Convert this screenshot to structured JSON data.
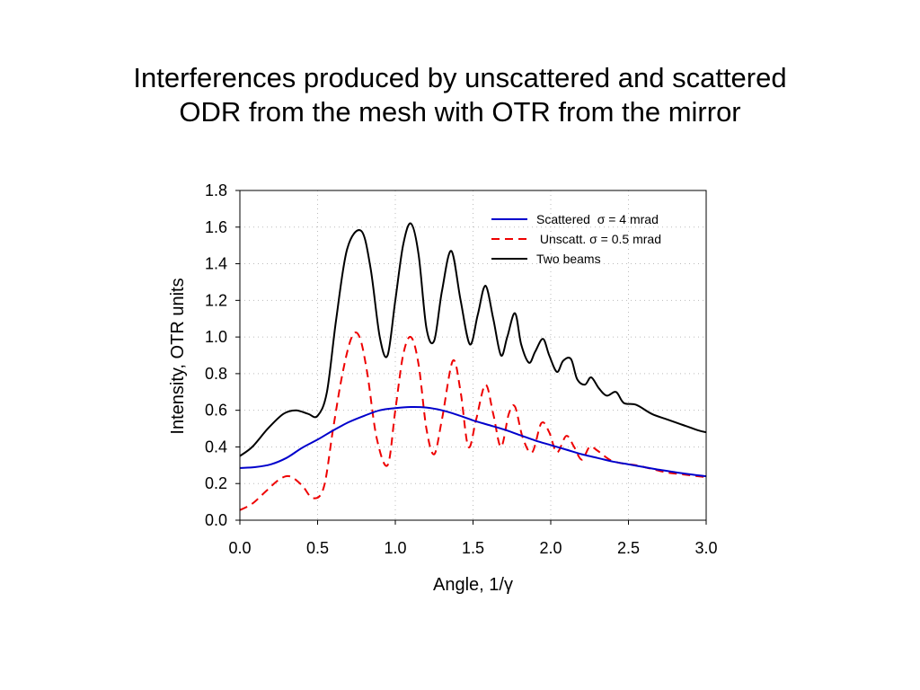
{
  "title": {
    "line1": "Interferences produced by unscattered and scattered",
    "line2": "ODR from the mesh with OTR from the mirror"
  },
  "chart_data": {
    "type": "line",
    "xlabel": "Angle, 1/γ",
    "ylabel": "Intensity, OTR units",
    "xlim": [
      0.0,
      3.0
    ],
    "ylim": [
      0.0,
      1.8
    ],
    "xticks": [
      "0.0",
      "0.5",
      "1.0",
      "1.5",
      "2.0",
      "2.5",
      "3.0"
    ],
    "yticks": [
      "0.0",
      "0.2",
      "0.4",
      "0.6",
      "0.8",
      "1.0",
      "1.2",
      "1.4",
      "1.6",
      "1.8"
    ],
    "grid": true,
    "legend_position": "top-right",
    "series": [
      {
        "name": "Scattered  σ = 4 mrad",
        "color": "#0000cc",
        "style": "solid",
        "x": [
          0.0,
          0.1,
          0.2,
          0.3,
          0.4,
          0.5,
          0.6,
          0.7,
          0.8,
          0.9,
          1.0,
          1.1,
          1.2,
          1.3,
          1.4,
          1.5,
          1.6,
          1.7,
          1.8,
          1.9,
          2.0,
          2.1,
          2.2,
          2.3,
          2.4,
          2.5,
          2.6,
          2.7,
          2.8,
          2.9,
          3.0
        ],
        "y": [
          0.285,
          0.29,
          0.305,
          0.34,
          0.395,
          0.44,
          0.49,
          0.535,
          0.57,
          0.6,
          0.612,
          0.618,
          0.615,
          0.6,
          0.575,
          0.545,
          0.52,
          0.495,
          0.465,
          0.435,
          0.41,
          0.385,
          0.36,
          0.34,
          0.32,
          0.305,
          0.29,
          0.275,
          0.262,
          0.25,
          0.24
        ]
      },
      {
        "name": " Unscatt. σ = 0.5 mrad",
        "color": "#ee0000",
        "style": "dashed",
        "x": [
          0.0,
          0.08,
          0.17,
          0.25,
          0.32,
          0.4,
          0.47,
          0.54,
          0.6,
          0.66,
          0.72,
          0.77,
          0.82,
          0.88,
          0.95,
          1.0,
          1.05,
          1.1,
          1.15,
          1.2,
          1.25,
          1.3,
          1.37,
          1.42,
          1.47,
          1.52,
          1.58,
          1.63,
          1.68,
          1.73,
          1.77,
          1.82,
          1.88,
          1.94,
          1.99,
          2.04,
          2.1,
          2.15,
          2.2,
          2.25,
          2.3,
          2.38,
          2.46,
          2.55,
          2.65,
          2.75,
          2.85,
          2.95,
          3.0
        ],
        "y": [
          0.055,
          0.09,
          0.16,
          0.22,
          0.24,
          0.19,
          0.12,
          0.18,
          0.5,
          0.8,
          1.0,
          1.0,
          0.8,
          0.45,
          0.3,
          0.6,
          0.9,
          1.0,
          0.85,
          0.5,
          0.36,
          0.55,
          0.87,
          0.7,
          0.4,
          0.55,
          0.74,
          0.58,
          0.4,
          0.58,
          0.62,
          0.45,
          0.37,
          0.53,
          0.48,
          0.37,
          0.46,
          0.4,
          0.33,
          0.4,
          0.38,
          0.33,
          0.31,
          0.3,
          0.28,
          0.26,
          0.25,
          0.24,
          0.235
        ]
      },
      {
        "name": "Two beams",
        "color": "#000000",
        "style": "solid",
        "x": [
          0.0,
          0.08,
          0.18,
          0.28,
          0.36,
          0.44,
          0.5,
          0.56,
          0.62,
          0.69,
          0.78,
          0.84,
          0.9,
          0.95,
          1.0,
          1.05,
          1.1,
          1.15,
          1.2,
          1.25,
          1.3,
          1.36,
          1.42,
          1.48,
          1.53,
          1.58,
          1.63,
          1.68,
          1.72,
          1.77,
          1.81,
          1.86,
          1.9,
          1.95,
          1.99,
          2.04,
          2.08,
          2.13,
          2.17,
          2.22,
          2.26,
          2.31,
          2.36,
          2.42,
          2.47,
          2.55,
          2.65,
          2.75,
          2.85,
          2.95,
          3.0
        ],
        "y": [
          0.35,
          0.4,
          0.5,
          0.58,
          0.6,
          0.58,
          0.57,
          0.7,
          1.1,
          1.48,
          1.58,
          1.38,
          1.0,
          0.9,
          1.2,
          1.5,
          1.62,
          1.45,
          1.05,
          0.98,
          1.25,
          1.47,
          1.2,
          0.96,
          1.12,
          1.28,
          1.1,
          0.9,
          1.0,
          1.13,
          0.96,
          0.86,
          0.92,
          0.99,
          0.9,
          0.81,
          0.87,
          0.88,
          0.77,
          0.74,
          0.78,
          0.72,
          0.68,
          0.7,
          0.64,
          0.63,
          0.58,
          0.55,
          0.52,
          0.49,
          0.48
        ]
      }
    ]
  }
}
